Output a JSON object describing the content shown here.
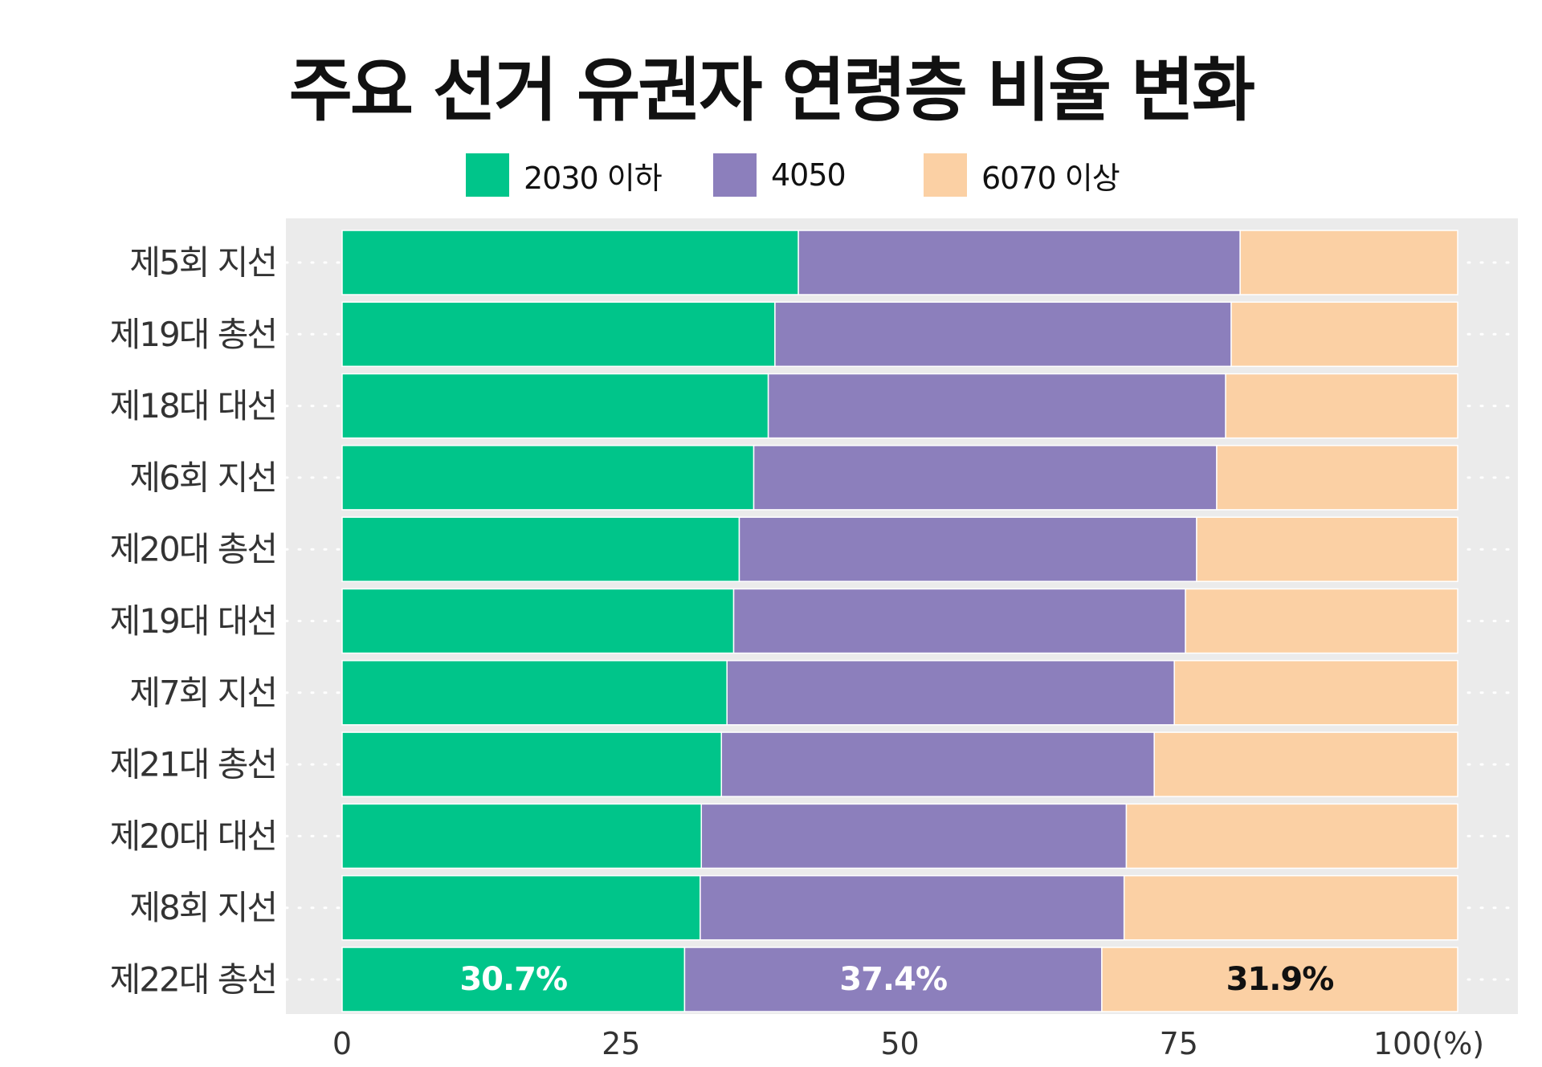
{
  "chart_data": {
    "type": "bar",
    "orientation": "horizontal",
    "stacked": true,
    "title": "주요 선거 유권자 연령층 비율 변화",
    "xlabel": "",
    "ylabel": "",
    "x_unit": "(%)",
    "xlim": [
      0,
      100
    ],
    "xticks": [
      0,
      25,
      50,
      75,
      100
    ],
    "grid": true,
    "legend_position": "top",
    "categories": [
      "제5회 지선",
      "제19대 총선",
      "제18대 대선",
      "제6회 지선",
      "제20대 총선",
      "제19대 대선",
      "제7회 지선",
      "제21대 총선",
      "제20대 대선",
      "제8회 지선",
      "제22대 총선"
    ],
    "series": [
      {
        "name": "2030 이하",
        "color": "#00C58A",
        "values": [
          40.9,
          38.8,
          38.2,
          36.9,
          35.6,
          35.1,
          34.5,
          34.0,
          32.2,
          32.1,
          30.7
        ]
      },
      {
        "name": "4050",
        "color": "#8C7FBC",
        "values": [
          39.6,
          40.9,
          41.0,
          41.5,
          41.0,
          40.5,
          40.1,
          38.8,
          38.1,
          38.0,
          37.4
        ]
      },
      {
        "name": "6070 이상",
        "color": "#FBD0A4",
        "values": [
          19.5,
          20.3,
          20.8,
          21.6,
          23.4,
          24.4,
          25.4,
          27.2,
          29.7,
          29.9,
          31.9
        ]
      }
    ],
    "data_labels": [
      {
        "category": "제22대 총선",
        "series": "2030 이하",
        "text": "30.7%",
        "color": "#ffffff"
      },
      {
        "category": "제22대 총선",
        "series": "4050",
        "text": "37.4%",
        "color": "#ffffff"
      },
      {
        "category": "제22대 총선",
        "series": "6070 이상",
        "text": "31.9%",
        "color": "#111111"
      }
    ],
    "panel_color": "#EBEBEB"
  }
}
